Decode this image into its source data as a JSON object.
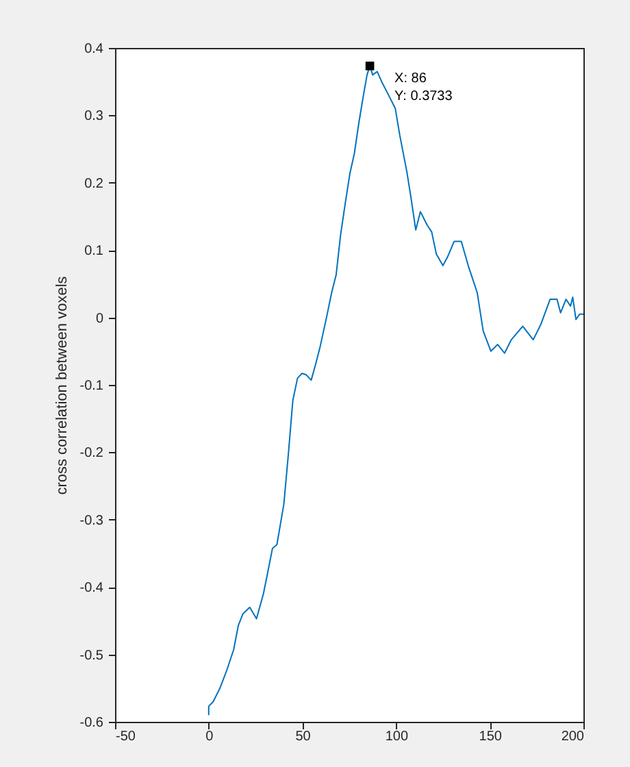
{
  "chart_data": {
    "type": "line",
    "ylabel": "cross correlation between voxels",
    "x": [
      0,
      0,
      2.4,
      6,
      9.7,
      13.3,
      15.8,
      18.2,
      21.9,
      25.5,
      29.2,
      31.6,
      34,
      36.4,
      40.1,
      42.5,
      44.9,
      47.4,
      49.8,
      52,
      54.7,
      57,
      59.5,
      63.1,
      65.6,
      68,
      70.4,
      72.9,
      75.3,
      77.7,
      80.2,
      82.6,
      84.5,
      86,
      87.5,
      89.9,
      92.3,
      96,
      99.6,
      102,
      105.7,
      108,
      110.5,
      113,
      116.6,
      119,
      121.5,
      125,
      127.5,
      131,
      134.8,
      138.5,
      143.3,
      146.5,
      150.6,
      154.2,
      157.9,
      161.5,
      167.6,
      173.2,
      177.3,
      182.2,
      185.9,
      187.8,
      190.7,
      193.1,
      194.3,
      196,
      198,
      200
    ],
    "series": [
      {
        "color": "#0072bd",
        "values": [
          -0.59,
          -0.577,
          -0.57,
          -0.55,
          -0.523,
          -0.493,
          -0.457,
          -0.44,
          -0.43,
          -0.447,
          -0.41,
          -0.377,
          -0.343,
          -0.337,
          -0.277,
          -0.203,
          -0.123,
          -0.09,
          -0.083,
          -0.085,
          -0.093,
          -0.07,
          -0.043,
          0.003,
          0.037,
          0.063,
          0.123,
          0.17,
          0.213,
          0.243,
          0.29,
          0.33,
          0.36,
          0.3733,
          0.36,
          0.365,
          0.35,
          0.33,
          0.31,
          0.27,
          0.217,
          0.177,
          0.13,
          0.157,
          0.137,
          0.127,
          0.094,
          0.077,
          0.09,
          0.113,
          0.113,
          0.077,
          0.037,
          -0.02,
          -0.05,
          -0.04,
          -0.053,
          -0.033,
          -0.013,
          -0.033,
          -0.01,
          0.027,
          0.027,
          0.007,
          0.027,
          0.017,
          0.03,
          -0.003,
          0.005,
          0.005
        ]
      }
    ],
    "xlim": [
      -50,
      200
    ],
    "xticks": [
      -50,
      0,
      50,
      100,
      150,
      200
    ],
    "ylim": [
      -0.6,
      0.4
    ],
    "yticks": [
      -0.6,
      -0.5,
      -0.4,
      -0.3,
      -0.2,
      -0.1,
      0,
      0.1,
      0.2,
      0.3,
      0.4
    ],
    "grid": false,
    "marker": "none",
    "line_style": "solid",
    "annotations": [
      {
        "text": "X: 86\nY: 0.3733",
        "x": 86,
        "y": 0.3733
      }
    ]
  }
}
